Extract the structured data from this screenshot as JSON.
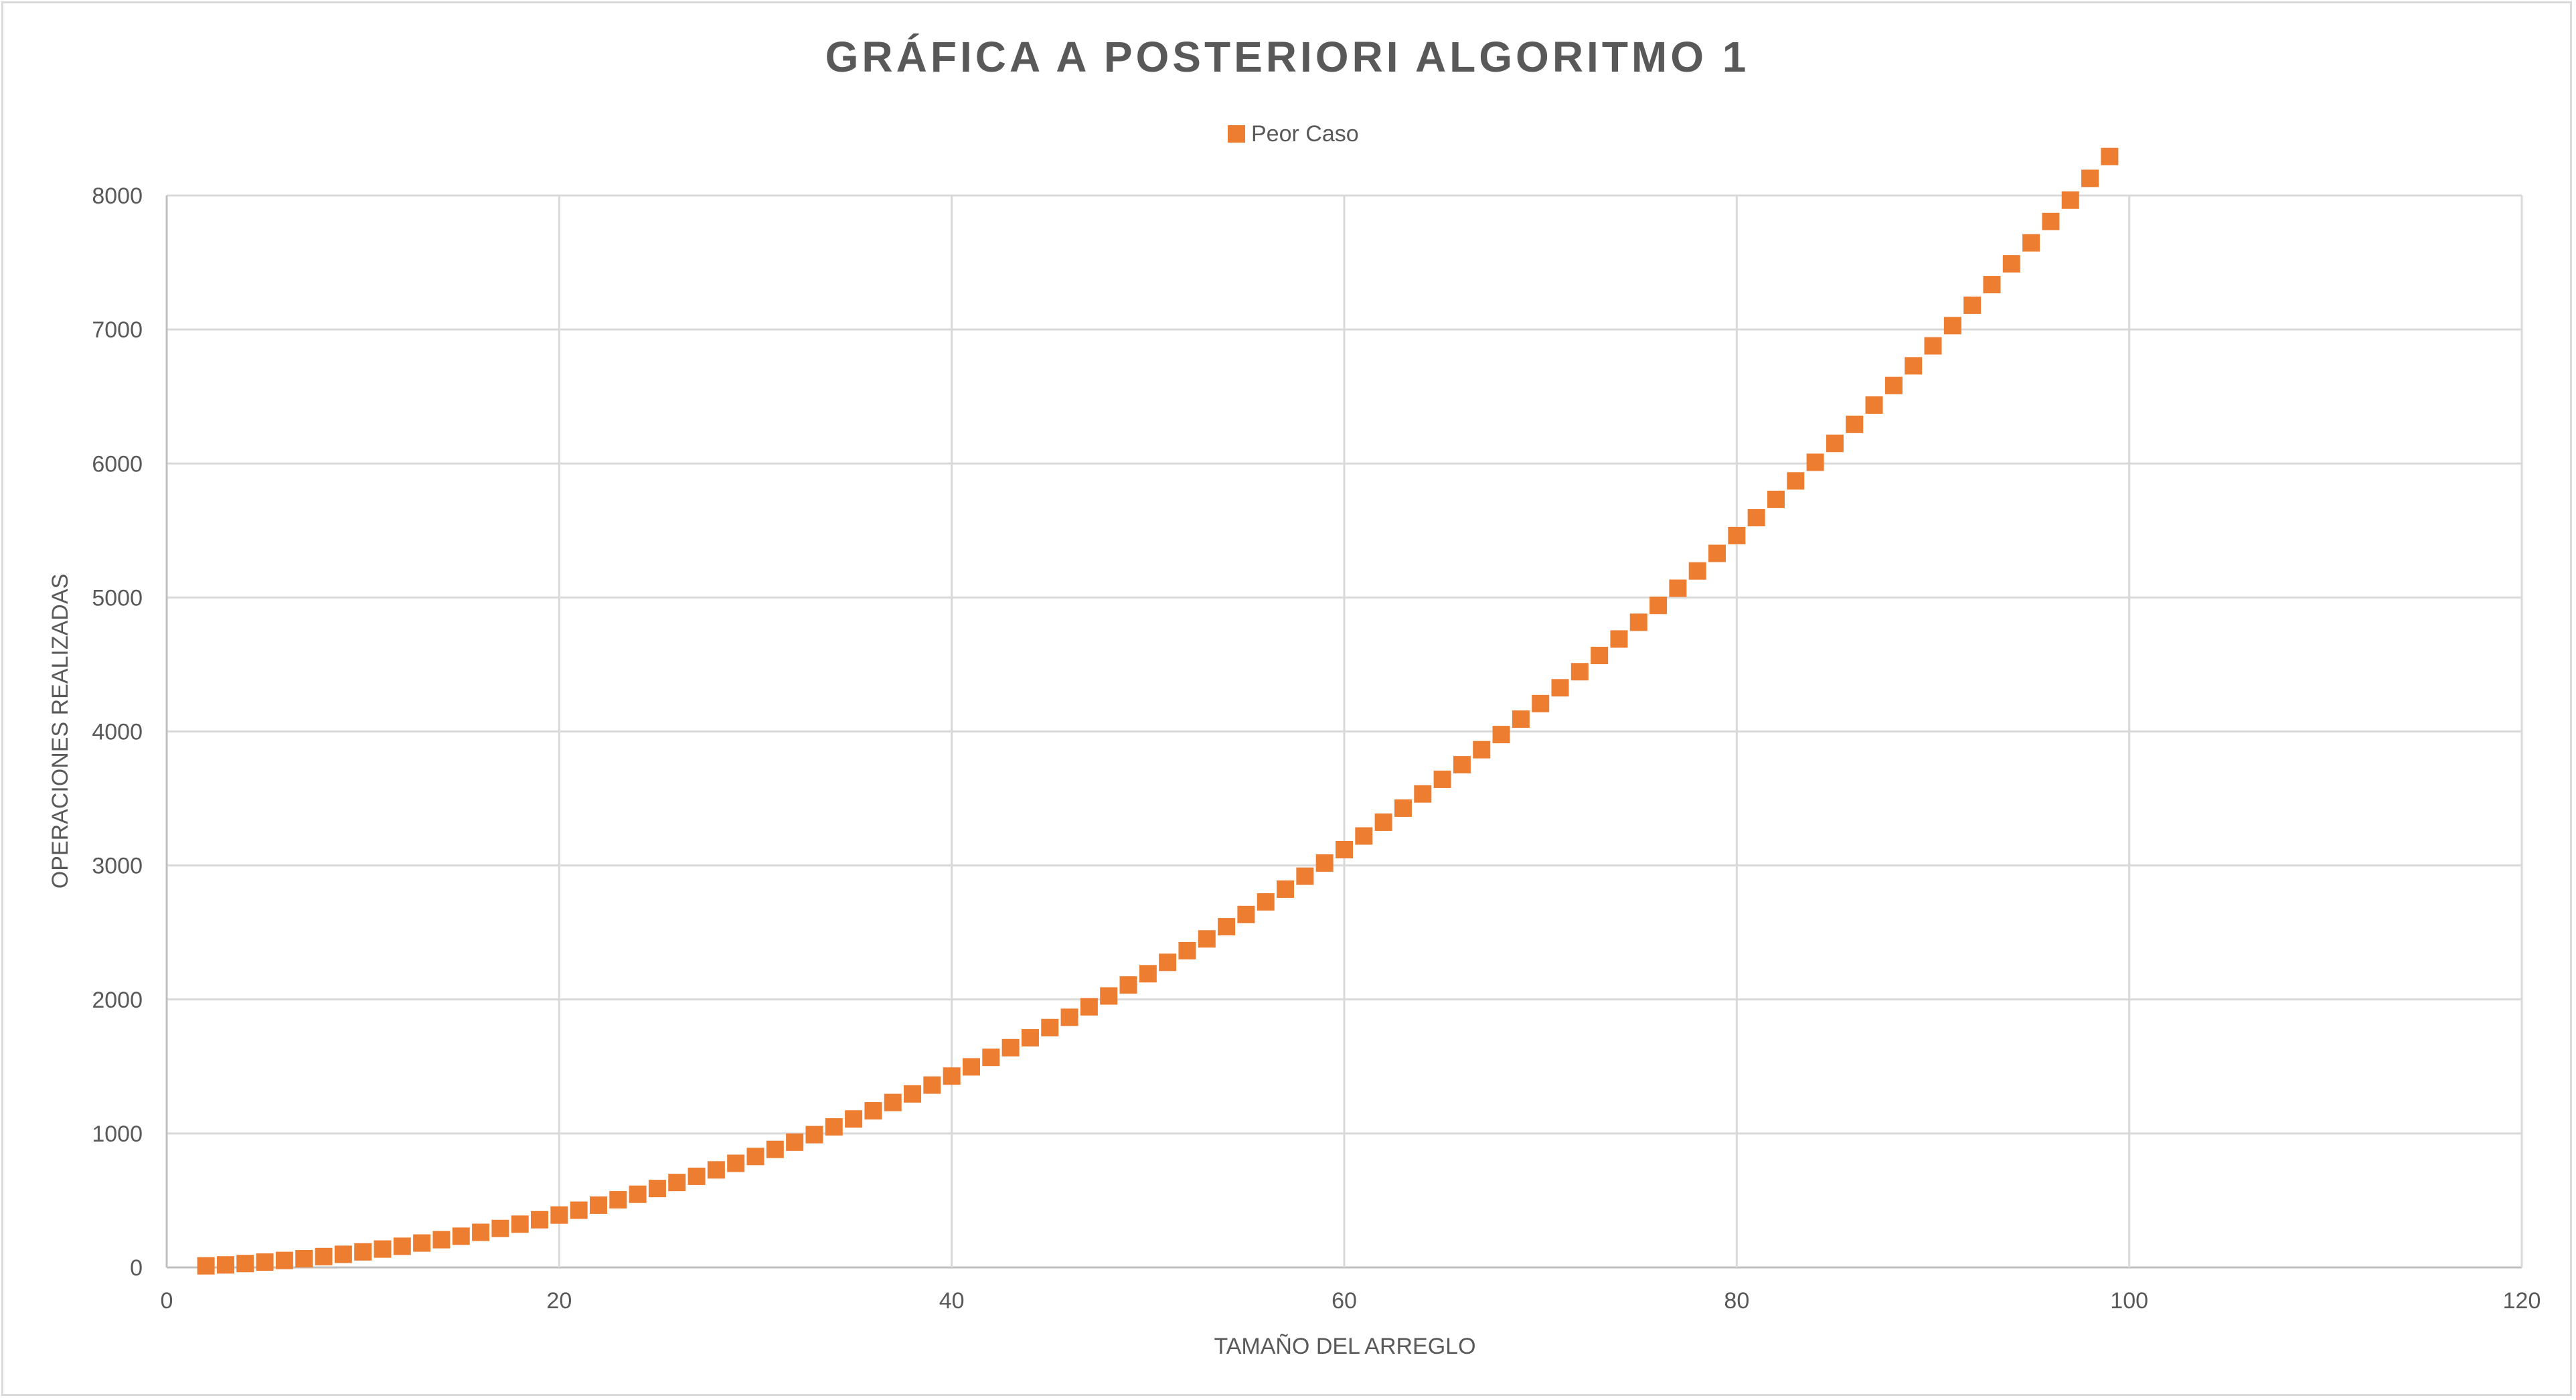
{
  "chart_data": {
    "type": "scatter",
    "title": "GRÁFICA A POSTERIORI ALGORITMO 1",
    "xlabel": "TAMAÑO DEL ARREGLO",
    "ylabel": "OPERACIONES REALIZADAS",
    "xlim": [
      0,
      120
    ],
    "ylim": [
      0,
      8000
    ],
    "x_ticks": [
      0,
      20,
      40,
      60,
      80,
      100,
      120
    ],
    "y_ticks": [
      0,
      1000,
      2000,
      3000,
      4000,
      5000,
      6000,
      7000,
      8000
    ],
    "grid": true,
    "legend_position": "top",
    "series": [
      {
        "name": "Peor Caso",
        "color": "#ed7d31",
        "marker": "square",
        "points": [
          [
            2,
            12
          ],
          [
            3,
            19
          ],
          [
            4,
            29
          ],
          [
            5,
            40
          ],
          [
            6,
            52
          ],
          [
            7,
            65
          ],
          [
            8,
            81
          ],
          [
            9,
            98
          ],
          [
            10,
            116
          ],
          [
            11,
            137
          ],
          [
            12,
            158
          ],
          [
            13,
            182
          ],
          [
            14,
            207
          ],
          [
            15,
            233
          ],
          [
            16,
            262
          ],
          [
            17,
            291
          ],
          [
            18,
            323
          ],
          [
            19,
            356
          ],
          [
            20,
            391
          ],
          [
            21,
            427
          ],
          [
            22,
            465
          ],
          [
            23,
            505
          ],
          [
            24,
            546
          ],
          [
            25,
            589
          ],
          [
            26,
            634
          ],
          [
            27,
            680
          ],
          [
            28,
            728
          ],
          [
            29,
            777
          ],
          [
            30,
            828
          ],
          [
            31,
            881
          ],
          [
            32,
            935
          ],
          [
            33,
            991
          ],
          [
            34,
            1049
          ],
          [
            35,
            1108
          ],
          [
            36,
            1169
          ],
          [
            37,
            1231
          ],
          [
            38,
            1295
          ],
          [
            39,
            1361
          ],
          [
            40,
            1428
          ],
          [
            41,
            1497
          ],
          [
            42,
            1568
          ],
          [
            43,
            1640
          ],
          [
            44,
            1714
          ],
          [
            45,
            1790
          ],
          [
            46,
            1867
          ],
          [
            47,
            1945
          ],
          [
            48,
            2026
          ],
          [
            49,
            2108
          ],
          [
            50,
            2192
          ],
          [
            51,
            2277
          ],
          [
            52,
            2364
          ],
          [
            53,
            2452
          ],
          [
            54,
            2543
          ],
          [
            55,
            2634
          ],
          [
            56,
            2728
          ],
          [
            57,
            2823
          ],
          [
            58,
            2920
          ],
          [
            59,
            3018
          ],
          [
            60,
            3118
          ],
          [
            61,
            3220
          ],
          [
            62,
            3323
          ],
          [
            63,
            3428
          ],
          [
            64,
            3534
          ],
          [
            65,
            3643
          ],
          [
            66,
            3752
          ],
          [
            67,
            3864
          ],
          [
            68,
            3977
          ],
          [
            69,
            4092
          ],
          [
            70,
            4208
          ],
          [
            71,
            4326
          ],
          [
            72,
            4446
          ],
          [
            73,
            4567
          ],
          [
            74,
            4690
          ],
          [
            75,
            4815
          ],
          [
            76,
            4941
          ],
          [
            77,
            5069
          ],
          [
            78,
            5198
          ],
          [
            79,
            5329
          ],
          [
            80,
            5462
          ],
          [
            81,
            5596
          ],
          [
            82,
            5732
          ],
          [
            83,
            5870
          ],
          [
            84,
            6009
          ],
          [
            85,
            6150
          ],
          [
            86,
            6292
          ],
          [
            87,
            6436
          ],
          [
            88,
            6582
          ],
          [
            89,
            6729
          ],
          [
            90,
            6878
          ],
          [
            91,
            7029
          ],
          [
            92,
            7181
          ],
          [
            93,
            7335
          ],
          [
            94,
            7490
          ],
          [
            95,
            7647
          ],
          [
            96,
            7806
          ],
          [
            97,
            7966
          ],
          [
            98,
            8128
          ],
          [
            99,
            8291
          ]
        ]
      }
    ]
  }
}
